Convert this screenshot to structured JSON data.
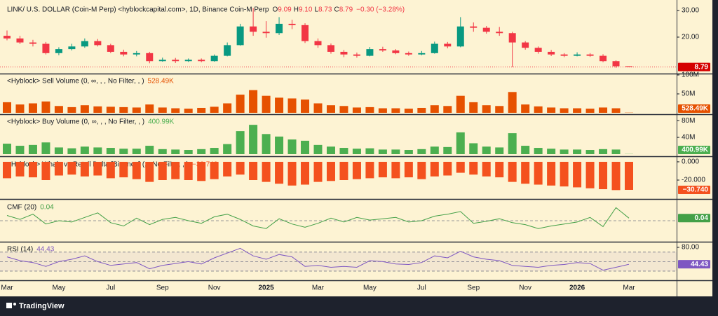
{
  "chart_data": [
    {
      "type": "candlestick",
      "title": "LINK/  U.S. DOLLAR (Coin-M Perp) <hyblockcapital.com>, 1D, Binance Coin-M Perp",
      "ohlc_header": [
        [
          "O",
          "9.09"
        ],
        [
          "H",
          "9.10"
        ],
        [
          "L",
          "8.73"
        ],
        [
          "C",
          "8.79"
        ]
      ],
      "change": "−0.30 (−3.28%)",
      "categories": [
        "Mar",
        null,
        null,
        null,
        "May",
        null,
        null,
        null,
        "Jul",
        null,
        null,
        null,
        "Sep",
        null,
        null,
        null,
        "Nov",
        null,
        null,
        null,
        "2025",
        null,
        null,
        null,
        "Mar",
        null,
        null,
        null,
        "May",
        null,
        null,
        null,
        "Jul",
        null,
        null,
        null,
        "Sep",
        null,
        null,
        null,
        "Nov",
        null,
        null,
        null,
        "2026",
        null,
        null,
        null,
        "Mar"
      ],
      "open": [
        20.5,
        19.5,
        18.0,
        17.5,
        14.0,
        15.5,
        16.5,
        18.5,
        17.0,
        14.5,
        13.5,
        14.0,
        11.0,
        11.5,
        11.0,
        11.5,
        11.0,
        13.0,
        17.0,
        24.0,
        22.0,
        21.5,
        25.0,
        24.5,
        18.5,
        17.0,
        14.5,
        13.5,
        13.0,
        15.5,
        15.0,
        14.0,
        13.5,
        14.0,
        17.5,
        16.5,
        24.0,
        23.5,
        22.0,
        21.5,
        18.0,
        16.0,
        14.5,
        13.5,
        13.0,
        13.5,
        13.0,
        11.0,
        9.09
      ],
      "high": [
        22.5,
        20.5,
        19.0,
        18.2,
        16.2,
        17.5,
        19.5,
        19.3,
        17.5,
        15.3,
        14.8,
        14.5,
        12.3,
        12.2,
        12.0,
        12.0,
        13.5,
        18.0,
        25.0,
        30.9,
        26.0,
        27.5,
        26.5,
        25.2,
        19.5,
        17.6,
        15.2,
        14.2,
        16.3,
        16.4,
        15.5,
        14.6,
        14.8,
        18.3,
        18.2,
        27.5,
        25.5,
        24.2,
        23.8,
        22.0,
        18.5,
        16.5,
        15.2,
        14.0,
        14.3,
        14.0,
        13.6,
        11.3,
        9.1
      ],
      "low": [
        18.8,
        17.4,
        16.5,
        13.5,
        13.2,
        15.0,
        16.0,
        16.5,
        14.0,
        12.8,
        12.8,
        10.2,
        10.8,
        10.3,
        10.7,
        10.6,
        10.8,
        12.8,
        16.8,
        20.5,
        19.8,
        20.8,
        23.0,
        17.8,
        16.0,
        13.8,
        12.5,
        12.3,
        12.8,
        14.5,
        13.6,
        13.0,
        13.2,
        13.8,
        15.8,
        16.2,
        22.0,
        21.3,
        20.5,
        8.7,
        15.3,
        13.8,
        12.9,
        12.5,
        12.8,
        12.6,
        10.6,
        8.5,
        8.73
      ],
      "close": [
        19.5,
        18.0,
        17.5,
        14.0,
        15.5,
        16.5,
        18.5,
        17.0,
        14.5,
        13.5,
        14.0,
        11.0,
        11.5,
        11.0,
        11.5,
        11.0,
        13.0,
        17.0,
        24.0,
        22.0,
        21.5,
        25.0,
        24.5,
        18.5,
        17.0,
        14.5,
        13.5,
        13.0,
        15.5,
        15.0,
        14.0,
        13.5,
        14.0,
        17.5,
        16.5,
        24.0,
        23.5,
        22.0,
        21.5,
        18.0,
        16.0,
        14.5,
        13.5,
        13.0,
        13.5,
        13.0,
        11.0,
        9.09,
        8.79
      ],
      "up_color": "#089981",
      "down_color": "#f23645",
      "ylim": [
        6.6,
        32.6
      ],
      "yticks": [
        {
          "value": 20,
          "label": "20.00"
        },
        {
          "value": 30,
          "label": "30.00"
        }
      ]
    },
    {
      "type": "bar",
      "title": "<Hyblock> Sell Volume (0, ∞, , , No Filter, , )",
      "color": "#e65100",
      "values": [
        28000000,
        22000000,
        25000000,
        30000000,
        18000000,
        15000000,
        20000000,
        17000000,
        16000000,
        15000000,
        14000000,
        22000000,
        14000000,
        12000000,
        11000000,
        13000000,
        16000000,
        25000000,
        48000000,
        60000000,
        45000000,
        40000000,
        38000000,
        35000000,
        25000000,
        20000000,
        18000000,
        14000000,
        15000000,
        12000000,
        12000000,
        11000000,
        13000000,
        20000000,
        18000000,
        45000000,
        28000000,
        20000000,
        18000000,
        55000000,
        22000000,
        17000000,
        14000000,
        12000000,
        12000000,
        11000000,
        14000000,
        12000000,
        528490
      ],
      "value_labels": [
        null,
        null,
        null,
        null,
        null,
        null,
        null,
        null,
        null,
        null,
        null,
        null,
        null,
        null,
        null,
        null,
        null,
        null,
        null,
        null,
        null,
        null,
        null,
        null,
        null,
        null,
        null,
        null,
        null,
        null,
        null,
        null,
        null,
        null,
        null,
        null,
        null,
        null,
        null,
        null,
        null,
        null,
        null,
        null,
        null,
        null,
        null,
        null,
        "528.49K"
      ],
      "ylim": [
        0,
        100000000
      ],
      "yticks": [
        {
          "value": 50000000,
          "label": "50M"
        },
        {
          "value": 100000000,
          "label": "100M"
        }
      ]
    },
    {
      "type": "bar",
      "title": "<Hyblock> Buy Volume (0, ∞, , , No Filter, , )",
      "color": "#4caf50",
      "values": [
        25000000,
        20000000,
        22000000,
        28000000,
        16000000,
        14000000,
        18000000,
        16000000,
        15000000,
        13000000,
        13000000,
        20000000,
        12000000,
        11000000,
        10000000,
        12000000,
        15000000,
        24000000,
        55000000,
        70000000,
        48000000,
        42000000,
        35000000,
        32000000,
        22000000,
        18000000,
        15000000,
        13000000,
        14000000,
        11000000,
        11000000,
        10000000,
        12000000,
        18000000,
        17000000,
        52000000,
        26000000,
        18000000,
        16000000,
        50000000,
        20000000,
        15000000,
        13000000,
        11000000,
        11000000,
        10000000,
        12000000,
        11000000,
        400990
      ],
      "value_labels": [
        null,
        null,
        null,
        null,
        null,
        null,
        null,
        null,
        null,
        null,
        null,
        null,
        null,
        null,
        null,
        null,
        null,
        null,
        null,
        null,
        null,
        null,
        null,
        null,
        null,
        null,
        null,
        null,
        null,
        null,
        null,
        null,
        null,
        null,
        null,
        null,
        null,
        null,
        null,
        null,
        null,
        null,
        null,
        null,
        null,
        null,
        null,
        null,
        "400.99K"
      ],
      "ylim": [
        0,
        92000000
      ],
      "yticks": [
        {
          "value": 40000000,
          "label": "40M"
        },
        {
          "value": 80000000,
          "label": "80M"
        }
      ]
    },
    {
      "type": "bar",
      "title": "<Hyblock> Whale vs Retail Delta [Binance] (, , No Filter, , )",
      "color": "#f4511e",
      "values": [
        -18,
        -16,
        -17,
        -20,
        -15,
        -14,
        -16,
        -15,
        -18,
        -17,
        -19,
        -22,
        -20,
        -19,
        -20,
        -21,
        -19,
        -16,
        -14,
        -20,
        -22,
        -24,
        -26,
        -25,
        -22,
        -21,
        -20,
        -19,
        -18,
        -17,
        -18,
        -17,
        -19,
        -16,
        -15,
        -12,
        -14,
        -16,
        -17,
        -22,
        -24,
        -25,
        -26,
        -27,
        -28,
        -29,
        -30,
        -31,
        -30.74
      ],
      "value_labels": [
        null,
        null,
        null,
        null,
        null,
        null,
        null,
        null,
        null,
        null,
        null,
        null,
        null,
        null,
        null,
        null,
        null,
        null,
        null,
        null,
        null,
        null,
        null,
        null,
        null,
        null,
        null,
        null,
        null,
        null,
        null,
        null,
        null,
        null,
        null,
        null,
        null,
        null,
        null,
        null,
        null,
        null,
        null,
        null,
        null,
        null,
        null,
        null,
        "−30.740"
      ],
      "ylim": [
        -39.2,
        3.8
      ],
      "yticks": [
        {
          "value": 0,
          "label": "0.000"
        },
        {
          "value": -20,
          "label": "-20.000"
        }
      ]
    },
    {
      "type": "line",
      "title": "CMF (20)",
      "color": "#43a047",
      "values": [
        0.08,
        0.02,
        0.1,
        -0.05,
        0.0,
        -0.02,
        0.05,
        0.12,
        -0.03,
        -0.08,
        0.04,
        -0.06,
        0.02,
        0.05,
        0.0,
        -0.04,
        0.06,
        0.1,
        0.02,
        -0.08,
        -0.12,
        0.03,
        -0.05,
        -0.1,
        -0.04,
        0.04,
        -0.02,
        0.05,
        0.01,
        0.03,
        0.05,
        -0.02,
        0.0,
        0.07,
        0.1,
        0.14,
        -0.04,
        -0.01,
        0.03,
        -0.03,
        -0.06,
        -0.12,
        -0.08,
        -0.05,
        -0.02,
        0.05,
        -0.09,
        0.2,
        0.04
      ],
      "ylim": [
        -0.3,
        0.3
      ],
      "hlines": [
        0
      ]
    },
    {
      "type": "line",
      "title": "RSI (14)",
      "color": "#7e57c2",
      "values": [
        60,
        52,
        48,
        40,
        50,
        55,
        62,
        50,
        42,
        45,
        48,
        35,
        42,
        46,
        50,
        45,
        58,
        68,
        78,
        62,
        55,
        65,
        60,
        40,
        42,
        38,
        40,
        38,
        52,
        50,
        45,
        44,
        48,
        62,
        58,
        72,
        60,
        55,
        52,
        42,
        40,
        38,
        42,
        44,
        48,
        46,
        32,
        38,
        44.43
      ],
      "ylim": [
        13.7,
        88.9
      ],
      "yticks": [
        {
          "value": 80,
          "label": "80.00"
        }
      ],
      "hlines": [
        70,
        50,
        30
      ]
    }
  ],
  "footer": {
    "brand": "TradingView"
  }
}
